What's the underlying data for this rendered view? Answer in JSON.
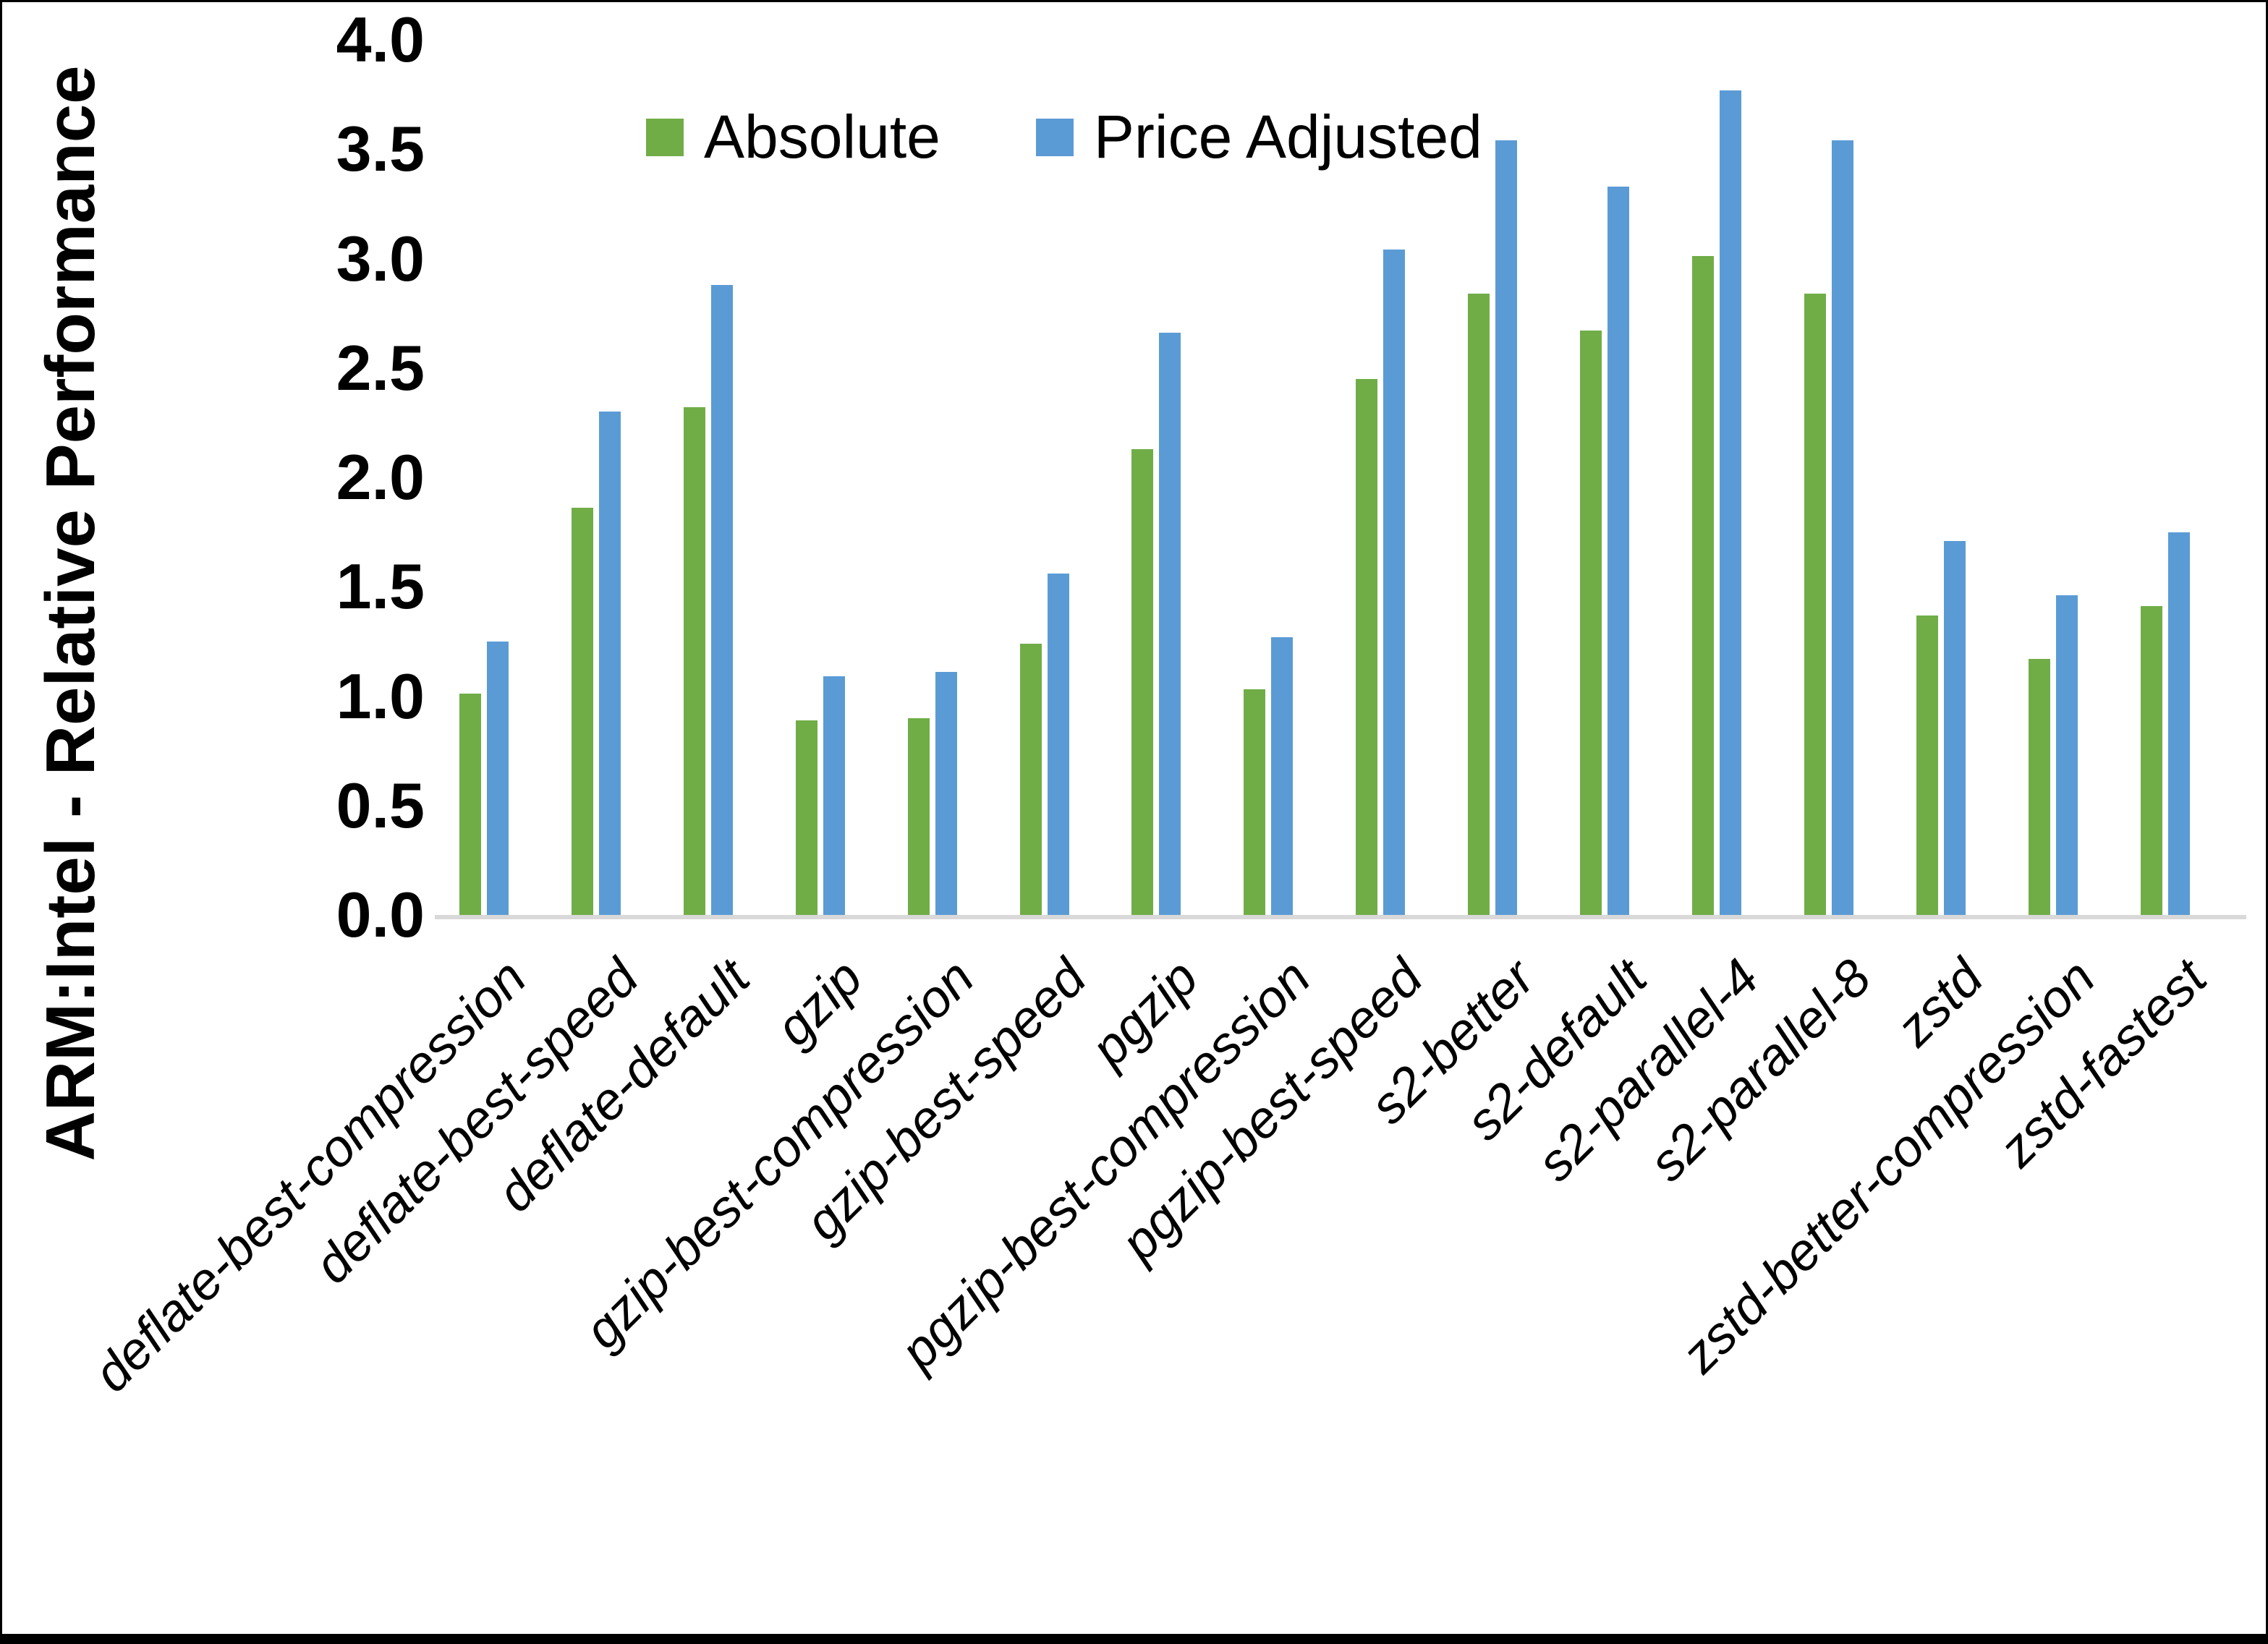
{
  "chart_data": {
    "type": "bar",
    "title": "",
    "xlabel": "",
    "ylabel": "ARM:Intel - Relative Performance",
    "ylim": [
      0.0,
      4.0
    ],
    "ytick_step": 0.5,
    "ytick_labels": [
      "0.0",
      "0.5",
      "1.0",
      "1.5",
      "2.0",
      "2.5",
      "3.0",
      "3.5",
      "4.0"
    ],
    "grid": false,
    "legend_position": "top-center",
    "categories": [
      "deflate-best-compression",
      "deflate-best-speed",
      "deflate-default",
      "gzip",
      "gzip-best-compression",
      "gzip-best-speed",
      "pgzip",
      "pgzip-best-compression",
      "pgzip-best-speed",
      "s2-better",
      "s2-default",
      "s2-parallel-4",
      "s2-parallel-8",
      "zstd",
      "zstd-better-compression",
      "zstd-fastest"
    ],
    "series": [
      {
        "name": "Absolute",
        "color": "#70AD47",
        "values": [
          1.01,
          1.86,
          2.32,
          0.89,
          0.9,
          1.24,
          2.13,
          1.03,
          2.45,
          2.84,
          2.67,
          3.01,
          2.84,
          1.37,
          1.17,
          1.41
        ]
      },
      {
        "name": "Price Adjusted",
        "color": "#5B9BD5",
        "values": [
          1.25,
          2.3,
          2.88,
          1.09,
          1.11,
          1.56,
          2.66,
          1.27,
          3.04,
          3.54,
          3.33,
          3.77,
          3.54,
          1.71,
          1.46,
          1.75
        ]
      }
    ]
  },
  "colors": {
    "baseline": "#d9d9d9",
    "text": "#000000",
    "background": "#ffffff",
    "border": "#000000"
  }
}
